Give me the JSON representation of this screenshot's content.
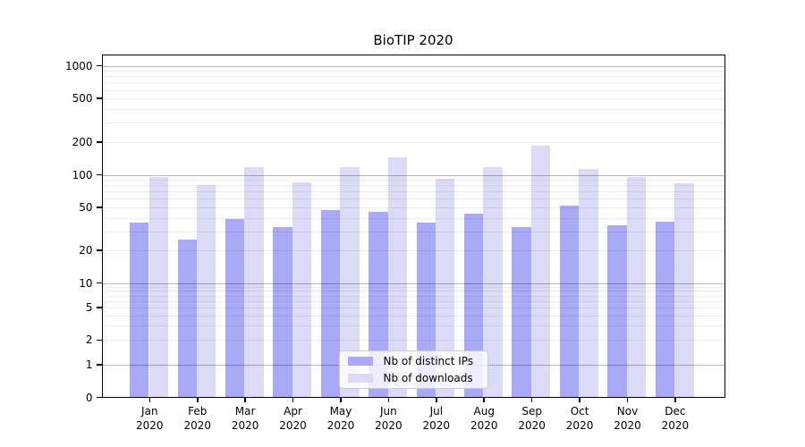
{
  "chart_data": {
    "type": "bar",
    "title": "BioTIP 2020",
    "categories": [
      "Jan 2020",
      "Feb 2020",
      "Mar 2020",
      "Apr 2020",
      "May 2020",
      "Jun 2020",
      "Jul 2020",
      "Aug 2020",
      "Sep 2020",
      "Oct 2020",
      "Nov 2020",
      "Dec 2020"
    ],
    "series": [
      {
        "name": "Nb of distinct IPs",
        "color": "#a9a9f7",
        "values": [
          36,
          25,
          39,
          33,
          47,
          45,
          36,
          44,
          33,
          52,
          34,
          37
        ]
      },
      {
        "name": "Nb of downloads",
        "color": "#dbdbf8",
        "values": [
          95,
          80,
          118,
          85,
          118,
          145,
          92,
          117,
          185,
          114,
          96,
          83
        ]
      }
    ],
    "xlabel": "",
    "ylabel": "",
    "yscale": "symlog",
    "y_ticks": [
      0,
      1,
      2,
      5,
      10,
      20,
      50,
      100,
      200,
      500,
      1000
    ],
    "ylim": [
      0,
      1266
    ],
    "grid": true,
    "legend_position": "lower-center-inside"
  }
}
